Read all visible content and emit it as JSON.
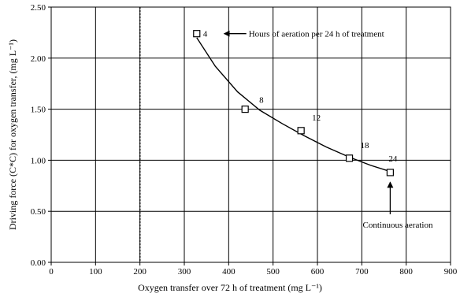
{
  "chart_data": {
    "type": "scatter",
    "xlabel": "Oxygen transfer over 72 h of treatment (mg L⁻¹)",
    "ylabel": "Driving force (C*C) for oxygen transfer, (mg L⁻¹)",
    "xlim": [
      0,
      900
    ],
    "ylim": [
      0.0,
      2.5
    ],
    "x_ticks": [
      "0",
      "100",
      "200",
      "300",
      "400",
      "500",
      "600",
      "700",
      "800",
      "900"
    ],
    "y_ticks": [
      "0.00",
      "0.50",
      "1.00",
      "1.50",
      "2.00",
      "2.50"
    ],
    "grid": true,
    "marker": "open-square",
    "points": [
      {
        "x": 328,
        "y": 2.24,
        "label": "4"
      },
      {
        "x": 437,
        "y": 1.5,
        "label": "8"
      },
      {
        "x": 563,
        "y": 1.29,
        "label": "12"
      },
      {
        "x": 672,
        "y": 1.02,
        "label": "18"
      },
      {
        "x": 764,
        "y": 0.88,
        "label": "24"
      }
    ],
    "curve": [
      {
        "x": 328,
        "y": 2.2
      },
      {
        "x": 370,
        "y": 1.92
      },
      {
        "x": 420,
        "y": 1.67
      },
      {
        "x": 470,
        "y": 1.49
      },
      {
        "x": 520,
        "y": 1.36
      },
      {
        "x": 570,
        "y": 1.24
      },
      {
        "x": 620,
        "y": 1.13
      },
      {
        "x": 672,
        "y": 1.03
      },
      {
        "x": 720,
        "y": 0.95
      },
      {
        "x": 764,
        "y": 0.89
      }
    ],
    "annotations": [
      {
        "text": "Hours of aeration per 24 h of treatment",
        "arrow_to": {
          "x": 390,
          "y": 2.24
        }
      },
      {
        "text": "Continuous aeration",
        "arrow_to": {
          "x": 764,
          "y": 0.8
        }
      }
    ]
  }
}
